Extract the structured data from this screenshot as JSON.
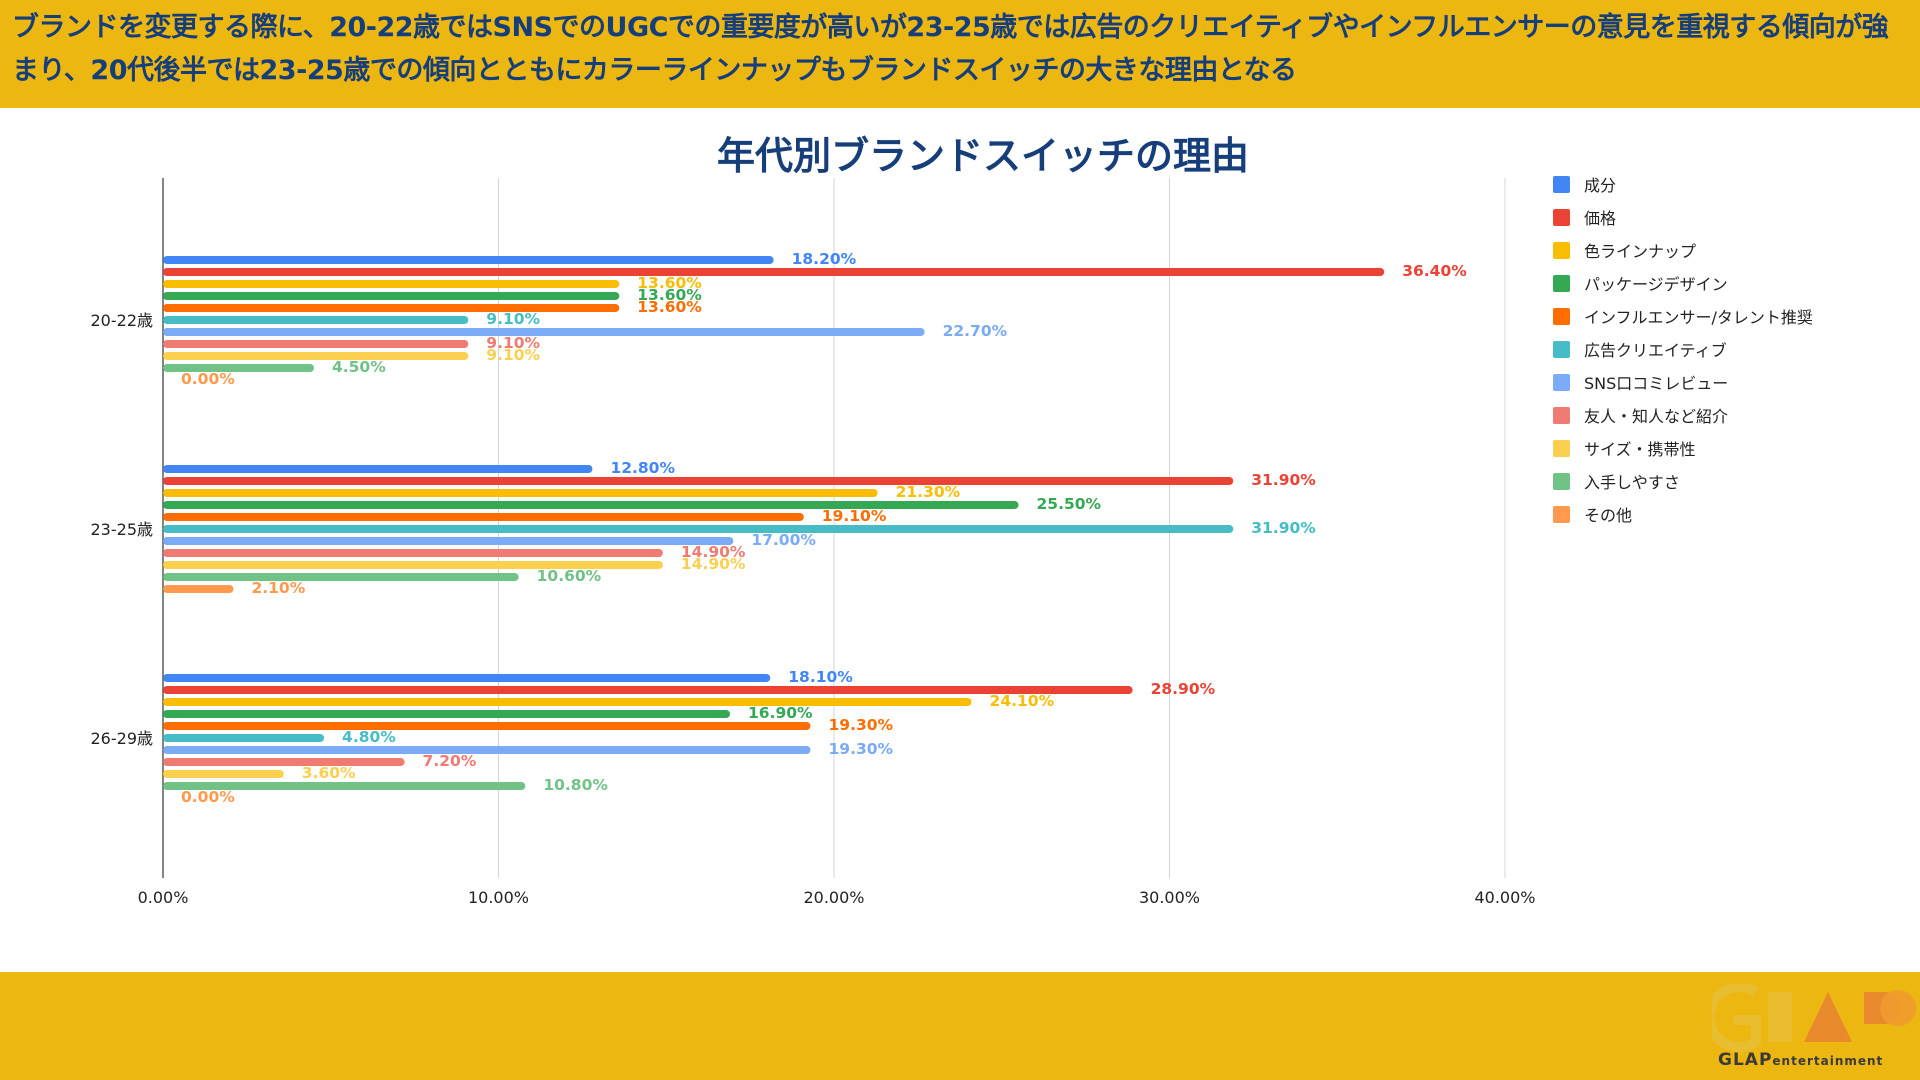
{
  "header": {
    "text": "ブランドを変更する際に、20-22歳ではSNSでのUGCでの重要度が高いが23-25歳では広告のクリエイティブやインフルエンサーの意見を重視する傾向が強まり、20代後半では23-25歳での傾向とともにカラーラインナップもブランドスイッチの大きな理由となる"
  },
  "logo": {
    "main": "GLAP",
    "sub": "entertainment"
  },
  "chart_data": {
    "type": "bar",
    "orientation": "horizontal",
    "title": "年代別ブランドスイッチの理由",
    "categories": [
      "20-22歳",
      "23-25歳",
      "26-29歳"
    ],
    "xlim": [
      0,
      40
    ],
    "x_ticks": [
      0,
      10,
      20,
      30,
      40
    ],
    "x_tick_labels": [
      "0.00%",
      "10.00%",
      "20.00%",
      "30.00%",
      "40.00%"
    ],
    "grid": true,
    "legend_position": "right",
    "series": [
      {
        "name": "成分",
        "color": "#4285F4",
        "values": [
          18.2,
          12.8,
          18.1
        ],
        "labels": [
          "18.20%",
          "12.80%",
          "18.10%"
        ]
      },
      {
        "name": "価格",
        "color": "#EA4335",
        "values": [
          36.4,
          31.9,
          28.9
        ],
        "labels": [
          "36.40%",
          "31.90%",
          "28.90%"
        ]
      },
      {
        "name": "色ラインナップ",
        "color": "#FBBC04",
        "values": [
          13.6,
          21.3,
          24.1
        ],
        "labels": [
          "13.60%",
          "21.30%",
          "24.10%"
        ]
      },
      {
        "name": "パッケージデザイン",
        "color": "#34A853",
        "values": [
          13.6,
          25.5,
          16.9
        ],
        "labels": [
          "13.60%",
          "25.50%",
          "16.90%"
        ]
      },
      {
        "name": "インフルエンサー/タレント推奨",
        "color": "#FF6D01",
        "values": [
          13.6,
          19.1,
          19.3
        ],
        "labels": [
          "13.60%",
          "19.10%",
          "19.30%"
        ]
      },
      {
        "name": "広告クリエイティブ",
        "color": "#46BDC6",
        "values": [
          9.1,
          31.9,
          4.8
        ],
        "labels": [
          "9.10%",
          "31.90%",
          "4.80%"
        ]
      },
      {
        "name": "SNS口コミレビュー",
        "color": "#7BAAF7",
        "values": [
          22.7,
          17.0,
          19.3
        ],
        "labels": [
          "22.70%",
          "17.00%",
          "19.30%"
        ]
      },
      {
        "name": "友人・知人など紹介",
        "color": "#F07B72",
        "values": [
          9.1,
          14.9,
          7.2
        ],
        "labels": [
          "9.10%",
          "14.90%",
          "7.20%"
        ]
      },
      {
        "name": "サイズ・携帯性",
        "color": "#FCD04F",
        "values": [
          9.1,
          14.9,
          3.6
        ],
        "labels": [
          "9.10%",
          "14.90%",
          "3.60%"
        ]
      },
      {
        "name": "入手しやすさ",
        "color": "#71C287",
        "values": [
          4.5,
          10.6,
          10.8
        ],
        "labels": [
          "4.50%",
          "10.60%",
          "10.80%"
        ]
      },
      {
        "name": "その他",
        "color": "#FF994D",
        "values": [
          0.0,
          2.1,
          0.0
        ],
        "labels": [
          "0.00%",
          "2.10%",
          "0.00%"
        ]
      }
    ]
  }
}
